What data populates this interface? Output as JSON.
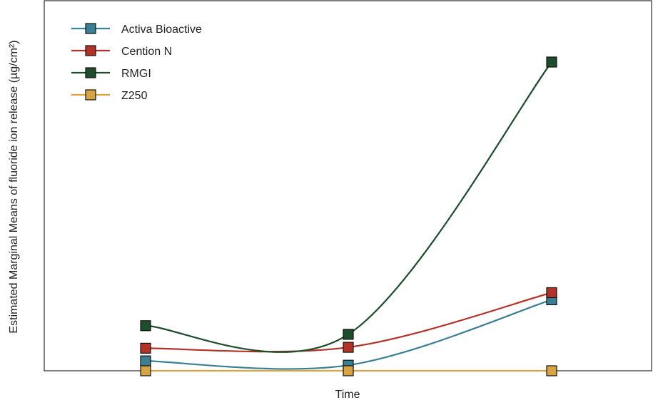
{
  "chart_data": {
    "type": "line",
    "xlabel": "Time",
    "ylabel": "Estimated Marginal Means of fluoride ion release (µg/cm²)",
    "categories": [
      "",
      "",
      ""
    ],
    "ylim": [
      0,
      100
    ],
    "grid": false,
    "legend_position": "top-left",
    "series": [
      {
        "name": "Activa Bioactive",
        "color": "#3a7f94",
        "values": [
          3.2,
          1.8,
          23.0
        ]
      },
      {
        "name": "Cention N",
        "color": "#b33227",
        "values": [
          7.3,
          7.6,
          25.3
        ]
      },
      {
        "name": "RMGI",
        "color": "#1e4d2b",
        "values": [
          14.6,
          11.8,
          100.0
        ]
      },
      {
        "name": "Z250",
        "color": "#d6a443",
        "values": [
          0.0,
          0.0,
          0.0
        ]
      }
    ]
  }
}
